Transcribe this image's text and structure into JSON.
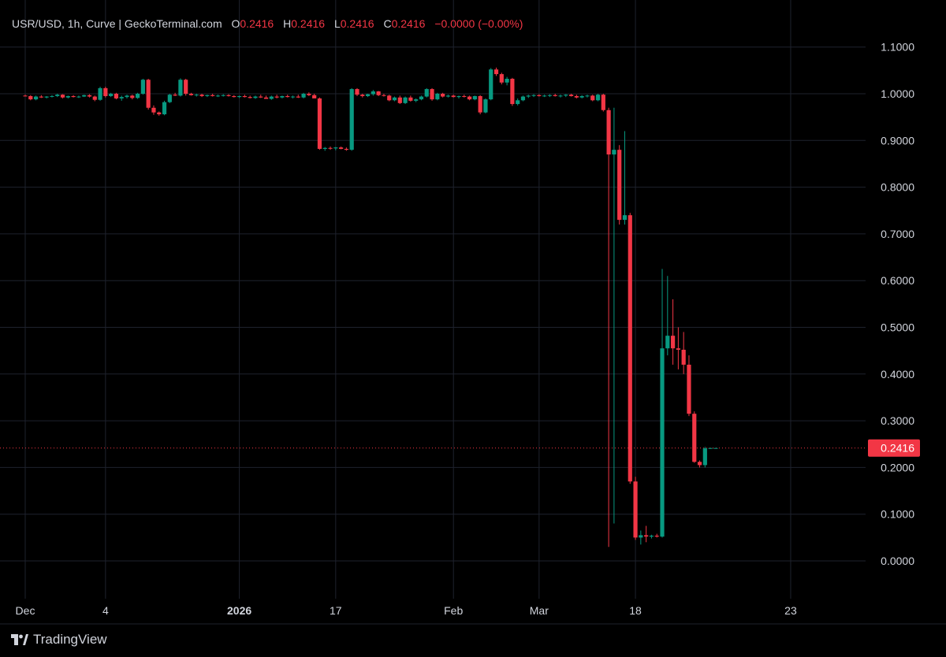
{
  "legend": {
    "symbol": "USR/USD, 1h, Curve | GeckoTerminal.com",
    "open_label": "O",
    "open": "0.2416",
    "high_label": "H",
    "high": "0.2416",
    "low_label": "L",
    "low": "0.2416",
    "close_label": "C",
    "close": "0.2416",
    "change": "−0.0000 (−0.00%)"
  },
  "brand": {
    "name": "TradingView"
  },
  "colors": {
    "up": "#089981",
    "down": "#f23645",
    "background": "#000000",
    "grid": "#1e222d",
    "text": "#d1d4dc"
  },
  "chart_data": {
    "type": "candlestick",
    "ylim": [
      -0.08,
      1.12
    ],
    "y_ticks": [
      "1.1000",
      "1.0000",
      "0.9000",
      "0.8000",
      "0.7000",
      "0.6000",
      "0.5000",
      "0.4000",
      "0.3000",
      "0.2000",
      "0.1000",
      "0.0000"
    ],
    "x_ticks": [
      {
        "label": "Dec",
        "idx": 0,
        "bold": false
      },
      {
        "label": "4",
        "idx": 15,
        "bold": false
      },
      {
        "label": "2026",
        "idx": 40,
        "bold": true
      },
      {
        "label": "17",
        "idx": 58,
        "bold": false
      },
      {
        "label": "Feb",
        "idx": 80,
        "bold": false
      },
      {
        "label": "Mar",
        "idx": 96,
        "bold": false
      },
      {
        "label": "18",
        "idx": 114,
        "bold": false
      },
      {
        "label": "23",
        "idx": 143,
        "bold": false
      }
    ],
    "last_price": 0.2416,
    "last_price_label": "0.2416",
    "candles": [
      [
        0.996,
        0.998,
        0.994,
        0.995
      ],
      [
        0.995,
        0.997,
        0.986,
        0.988
      ],
      [
        0.988,
        0.996,
        0.986,
        0.994
      ],
      [
        0.994,
        0.997,
        0.991,
        0.992
      ],
      [
        0.992,
        0.995,
        0.99,
        0.994
      ],
      [
        0.994,
        0.997,
        0.992,
        0.995
      ],
      [
        0.995,
        1.0,
        0.993,
        0.998
      ],
      [
        0.998,
        0.999,
        0.99,
        0.992
      ],
      [
        0.992,
        0.996,
        0.99,
        0.995
      ],
      [
        0.995,
        0.997,
        0.992,
        0.993
      ],
      [
        0.993,
        0.996,
        0.991,
        0.994
      ],
      [
        0.994,
        0.998,
        0.993,
        0.997
      ],
      [
        0.997,
        0.999,
        0.992,
        0.994
      ],
      [
        0.994,
        0.996,
        0.984,
        0.987
      ],
      [
        0.987,
        1.015,
        0.985,
        1.012
      ],
      [
        1.012,
        1.015,
        0.992,
        0.995
      ],
      [
        0.995,
        1.002,
        0.993,
        1.0
      ],
      [
        1.0,
        1.002,
        0.988,
        0.99
      ],
      [
        0.99,
        0.996,
        0.985,
        0.993
      ],
      [
        0.993,
        0.998,
        0.99,
        0.996
      ],
      [
        0.996,
        0.998,
        0.988,
        0.991
      ],
      [
        0.991,
        1.002,
        0.989,
        1.0
      ],
      [
        1.0,
        1.032,
        0.998,
        1.03
      ],
      [
        1.03,
        1.032,
        0.966,
        0.97
      ],
      [
        0.97,
        0.975,
        0.955,
        0.96
      ],
      [
        0.96,
        0.962,
        0.953,
        0.956
      ],
      [
        0.956,
        0.985,
        0.954,
        0.982
      ],
      [
        0.982,
        1.0,
        0.98,
        0.998
      ],
      [
        0.998,
        1.002,
        0.995,
        0.996
      ],
      [
        0.996,
        1.033,
        0.994,
        1.03
      ],
      [
        1.03,
        1.032,
        0.996,
        1.0
      ],
      [
        1.0,
        1.002,
        0.996,
        0.997
      ],
      [
        0.997,
        1.0,
        0.994,
        0.998
      ],
      [
        0.998,
        1.0,
        0.993,
        0.995
      ],
      [
        0.995,
        0.998,
        0.993,
        0.997
      ],
      [
        0.997,
        1.0,
        0.994,
        0.995
      ],
      [
        0.995,
        0.998,
        0.993,
        0.996
      ],
      [
        0.996,
        0.999,
        0.994,
        0.997
      ],
      [
        0.997,
        0.999,
        0.994,
        0.995
      ],
      [
        0.995,
        0.997,
        0.992,
        0.993
      ],
      [
        0.993,
        0.996,
        0.991,
        0.995
      ],
      [
        0.995,
        0.998,
        0.992,
        0.993
      ],
      [
        0.993,
        0.996,
        0.99,
        0.991
      ],
      [
        0.991,
        0.996,
        0.989,
        0.994
      ],
      [
        0.994,
        0.998,
        0.991,
        0.992
      ],
      [
        0.992,
        0.996,
        0.99,
        0.989
      ],
      [
        0.989,
        0.996,
        0.987,
        0.994
      ],
      [
        0.994,
        0.998,
        0.99,
        0.992
      ],
      [
        0.992,
        0.996,
        0.99,
        0.995
      ],
      [
        0.995,
        0.998,
        0.992,
        0.993
      ],
      [
        0.993,
        0.996,
        0.99,
        0.994
      ],
      [
        0.994,
        0.998,
        0.991,
        0.992
      ],
      [
        0.992,
        1.002,
        0.99,
        1.0
      ],
      [
        1.0,
        1.003,
        0.995,
        0.997
      ],
      [
        0.997,
        1.0,
        0.993,
        0.99
      ],
      [
        0.99,
        0.992,
        0.88,
        0.882
      ],
      [
        0.882,
        0.886,
        0.878,
        0.884
      ],
      [
        0.884,
        0.887,
        0.88,
        0.883
      ],
      [
        0.883,
        0.886,
        0.879,
        0.885
      ],
      [
        0.885,
        0.887,
        0.881,
        0.882
      ],
      [
        0.882,
        0.885,
        0.878,
        0.88
      ],
      [
        0.88,
        1.012,
        0.878,
        1.01
      ],
      [
        1.01,
        1.012,
        0.995,
        0.998
      ],
      [
        0.998,
        1.0,
        0.992,
        0.995
      ],
      [
        0.995,
        1.0,
        0.993,
        0.999
      ],
      [
        0.999,
        1.008,
        0.996,
        1.005
      ],
      [
        1.005,
        1.006,
        0.995,
        0.997
      ],
      [
        0.997,
        1.0,
        0.994,
        0.996
      ],
      [
        0.996,
        0.998,
        0.984,
        0.986
      ],
      [
        0.986,
        0.994,
        0.984,
        0.992
      ],
      [
        0.992,
        0.996,
        0.978,
        0.98
      ],
      [
        0.98,
        0.994,
        0.978,
        0.992
      ],
      [
        0.992,
        0.996,
        0.983,
        0.985
      ],
      [
        0.985,
        0.99,
        0.982,
        0.988
      ],
      [
        0.988,
        0.996,
        0.986,
        0.994
      ],
      [
        0.994,
        1.012,
        0.992,
        1.01
      ],
      [
        1.01,
        1.012,
        0.985,
        0.988
      ],
      [
        0.988,
        1.002,
        0.986,
        1.0
      ],
      [
        1.0,
        1.002,
        0.992,
        0.994
      ],
      [
        0.994,
        0.998,
        0.992,
        0.996
      ],
      [
        0.996,
        0.998,
        0.992,
        0.993
      ],
      [
        0.993,
        0.996,
        0.99,
        0.995
      ],
      [
        0.995,
        0.998,
        0.992,
        0.994
      ],
      [
        0.994,
        0.996,
        0.986,
        0.988
      ],
      [
        0.988,
        0.996,
        0.986,
        0.995
      ],
      [
        0.995,
        0.997,
        0.956,
        0.96
      ],
      [
        0.96,
        0.99,
        0.958,
        0.988
      ],
      [
        0.988,
        1.055,
        0.986,
        1.052
      ],
      [
        1.052,
        1.056,
        1.038,
        1.042
      ],
      [
        1.042,
        1.045,
        1.02,
        1.024
      ],
      [
        1.024,
        1.036,
        1.018,
        1.032
      ],
      [
        1.032,
        1.034,
        0.974,
        0.978
      ],
      [
        0.978,
        0.99,
        0.975,
        0.986
      ],
      [
        0.986,
        0.996,
        0.984,
        0.994
      ],
      [
        0.994,
        0.998,
        0.991,
        0.996
      ],
      [
        0.996,
        0.999,
        0.993,
        0.997
      ],
      [
        0.997,
        0.999,
        0.994,
        0.995
      ],
      [
        0.995,
        0.998,
        0.993,
        0.996
      ],
      [
        0.996,
        0.999,
        0.993,
        0.997
      ],
      [
        0.997,
        1.0,
        0.994,
        0.995
      ],
      [
        0.995,
        0.998,
        0.992,
        0.996
      ],
      [
        0.996,
        0.999,
        0.993,
        0.998
      ],
      [
        0.998,
        1.0,
        0.994,
        0.995
      ],
      [
        0.995,
        0.998,
        0.99,
        0.992
      ],
      [
        0.992,
        0.997,
        0.99,
        0.995
      ],
      [
        0.995,
        0.998,
        0.992,
        0.996
      ],
      [
        0.996,
        0.998,
        0.984,
        0.986
      ],
      [
        0.986,
        1.0,
        0.984,
        0.998
      ],
      [
        0.998,
        1.0,
        0.962,
        0.965
      ],
      [
        0.965,
        0.97,
        0.03,
        0.87
      ],
      [
        0.87,
        0.97,
        0.08,
        0.88
      ],
      [
        0.88,
        0.89,
        0.72,
        0.73
      ],
      [
        0.73,
        0.92,
        0.72,
        0.74
      ],
      [
        0.74,
        0.745,
        0.165,
        0.17
      ],
      [
        0.17,
        0.18,
        0.045,
        0.05
      ],
      [
        0.05,
        0.065,
        0.035,
        0.055
      ],
      [
        0.055,
        0.075,
        0.04,
        0.052
      ],
      [
        0.052,
        0.056,
        0.048,
        0.054
      ],
      [
        0.054,
        0.058,
        0.05,
        0.052
      ],
      [
        0.052,
        0.625,
        0.05,
        0.455
      ],
      [
        0.455,
        0.61,
        0.44,
        0.482
      ],
      [
        0.482,
        0.56,
        0.42,
        0.455
      ],
      [
        0.455,
        0.5,
        0.41,
        0.452
      ],
      [
        0.452,
        0.49,
        0.4,
        0.42
      ],
      [
        0.42,
        0.44,
        0.31,
        0.315
      ],
      [
        0.315,
        0.32,
        0.21,
        0.212
      ],
      [
        0.212,
        0.215,
        0.2,
        0.205
      ],
      [
        0.205,
        0.244,
        0.2,
        0.241
      ],
      [
        0.241,
        0.242,
        0.24,
        0.2416
      ],
      [
        0.2416,
        0.2418,
        0.2412,
        0.2416
      ]
    ]
  }
}
